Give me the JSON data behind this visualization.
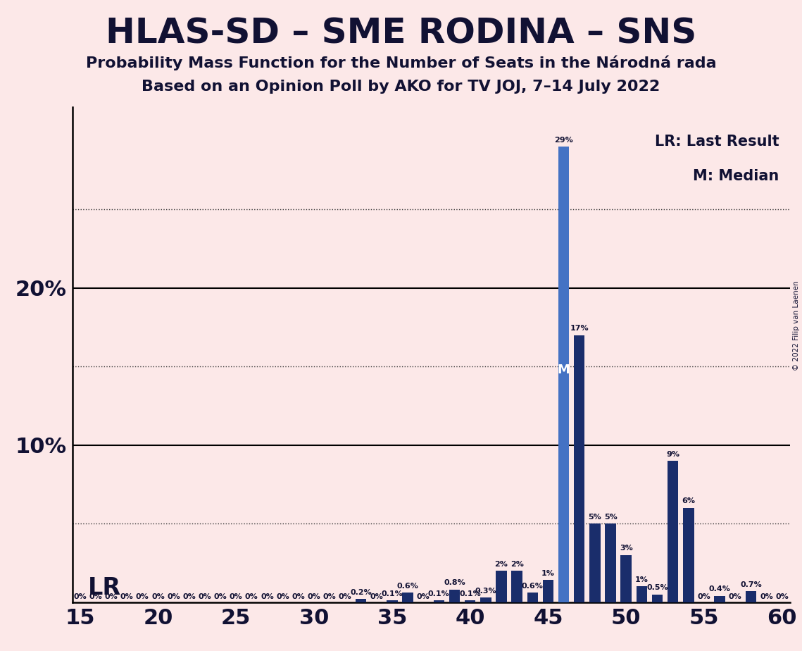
{
  "title": "HLAS-SD – SME RODINA – SNS",
  "subtitle1": "Probability Mass Function for the Number of Seats in the Národná rada",
  "subtitle2": "Based on an Opinion Poll by AKO for TV JOJ, 7–14 July 2022",
  "copyright": "© 2022 Filip van Laenen",
  "background_color": "#fce8e8",
  "bar_color_light": "#4472c4",
  "bar_color_dark": "#1a2d6b",
  "light_blue_seats": [
    46
  ],
  "median_seat": 46,
  "seats": [
    15,
    16,
    17,
    18,
    19,
    20,
    21,
    22,
    23,
    24,
    25,
    26,
    27,
    28,
    29,
    30,
    31,
    32,
    33,
    34,
    35,
    36,
    37,
    38,
    39,
    40,
    41,
    42,
    43,
    44,
    45,
    46,
    47,
    48,
    49,
    50,
    51,
    52,
    53,
    54,
    55,
    56,
    57,
    58,
    59,
    60
  ],
  "probabilities": [
    0.0,
    0.0,
    0.0,
    0.0,
    0.0,
    0.0,
    0.0,
    0.0,
    0.0,
    0.0,
    0.0,
    0.0,
    0.0,
    0.0,
    0.0,
    0.0,
    0.0,
    0.0,
    0.002,
    0.0,
    0.001,
    0.006,
    0.0,
    0.001,
    0.008,
    0.001,
    0.003,
    0.02,
    0.02,
    0.006,
    0.014,
    0.29,
    0.17,
    0.05,
    0.05,
    0.03,
    0.01,
    0.005,
    0.09,
    0.06,
    0.0,
    0.004,
    0.0,
    0.007,
    0.0,
    0.0
  ],
  "xlim": [
    14.5,
    60.5
  ],
  "ylim": [
    0,
    0.315
  ],
  "dotted_lines": [
    0.05,
    0.15,
    0.25
  ],
  "solid_lines": [
    0.1,
    0.2
  ],
  "lr_label": "LR",
  "median_label": "M",
  "legend_lr": "LR: Last Result",
  "legend_m": "M: Median",
  "title_fontsize": 36,
  "subtitle_fontsize": 16,
  "tick_fontsize": 22,
  "label_fontsize": 8
}
